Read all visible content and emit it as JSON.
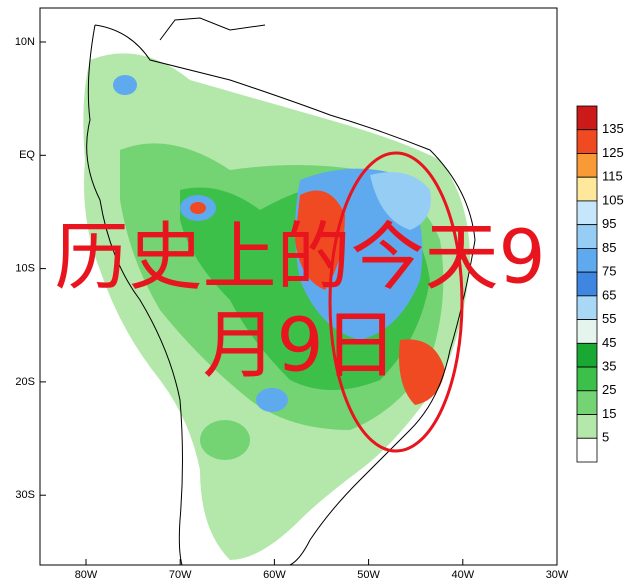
{
  "map": {
    "lat_labels": [
      "10N",
      "EQ",
      "10S",
      "20S",
      "30S"
    ],
    "lon_labels": [
      "80W",
      "70W",
      "60W",
      "50W",
      "40W",
      "30W"
    ]
  },
  "colorbar": {
    "levels": [
      135,
      125,
      115,
      105,
      95,
      85,
      75,
      65,
      55,
      45,
      35,
      25,
      15,
      5
    ],
    "colors": [
      "#cc1a1a",
      "#f04a22",
      "#f89a36",
      "#fde89c",
      "#c6e6fb",
      "#96cdf4",
      "#5fa9ee",
      "#3e86e0",
      "#a9d7f6",
      "#e6f4ee",
      "#19a832",
      "#3cc04a",
      "#74d474",
      "#b4e8aa",
      "#ffffff"
    ]
  },
  "overlay_text": {
    "line1": "历史上的今天9",
    "line2": "月9日"
  }
}
